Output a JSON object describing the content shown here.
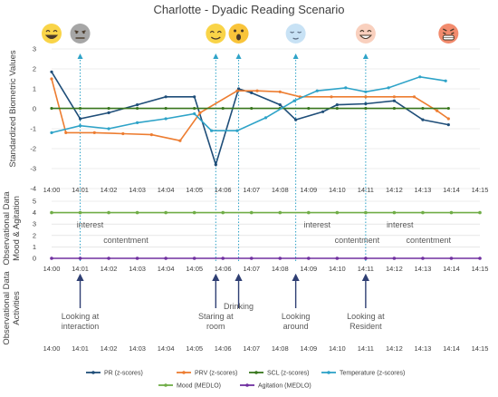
{
  "chart_data": {
    "type": "line",
    "title": "Charlotte - Dyadic Reading Scenario",
    "panel1_ylabel": "Standardized Biometric Values",
    "panel2_ylabel": "Observational Data Mood & Agitation",
    "panel3_ylabel": "Observational Data Activities",
    "x": [
      "14:00",
      "14:01",
      "14:02",
      "14:03",
      "14:04",
      "14:05",
      "14:06",
      "14:07",
      "14:08",
      "14:09",
      "14:10",
      "14:11",
      "14:12",
      "14:13",
      "14:14",
      "14:15"
    ],
    "panel1_ylim": [
      -4,
      3
    ],
    "panel1_yticks": [
      3,
      2,
      1,
      0,
      -1,
      -2,
      -3,
      -4
    ],
    "panel2_ylim": [
      0,
      5
    ],
    "panel2_yticks": [
      5,
      4,
      3,
      2,
      1,
      0
    ],
    "biometric_series": [
      {
        "name": "PR (z-scores)",
        "color": "#1f4e79",
        "points": [
          [
            0,
            1.85
          ],
          [
            1,
            -0.5
          ],
          [
            2,
            -0.2
          ],
          [
            3,
            0.2
          ],
          [
            4,
            0.6
          ],
          [
            5,
            0.6
          ],
          [
            5.75,
            -2.8
          ],
          [
            6.55,
            1.0
          ],
          [
            7,
            0.8
          ],
          [
            8,
            0.2
          ],
          [
            8.55,
            -0.55
          ],
          [
            9.5,
            -0.15
          ],
          [
            10,
            0.2
          ],
          [
            11,
            0.25
          ],
          [
            12,
            0.4
          ],
          [
            13,
            -0.55
          ],
          [
            13.9,
            -0.8
          ]
        ]
      },
      {
        "name": "PRV (z-scores)",
        "color": "#ed7d31",
        "points": [
          [
            0,
            1.5
          ],
          [
            0.5,
            -1.2
          ],
          [
            1.5,
            -1.2
          ],
          [
            2.5,
            -1.25
          ],
          [
            3.5,
            -1.3
          ],
          [
            4.5,
            -1.6
          ],
          [
            5.2,
            -0.2
          ],
          [
            6.5,
            0.9
          ],
          [
            7.2,
            0.9
          ],
          [
            8.0,
            0.85
          ],
          [
            8.7,
            0.6
          ],
          [
            9.8,
            0.6
          ],
          [
            11,
            0.6
          ],
          [
            12,
            0.6
          ],
          [
            12.7,
            0.6
          ],
          [
            13.5,
            -0.1
          ],
          [
            13.9,
            -0.5
          ]
        ]
      },
      {
        "name": "SCL (z-scores)",
        "color": "#38761d",
        "points": [
          [
            0,
            0.02
          ],
          [
            1,
            0.02
          ],
          [
            2,
            0.02
          ],
          [
            3,
            0.02
          ],
          [
            4,
            0.02
          ],
          [
            5,
            0.02
          ],
          [
            6,
            0.02
          ],
          [
            7,
            0.02
          ],
          [
            8,
            0.02
          ],
          [
            9,
            0.02
          ],
          [
            10,
            0.02
          ],
          [
            11,
            0.02
          ],
          [
            12,
            0.02
          ],
          [
            13,
            0.02
          ],
          [
            13.9,
            0.02
          ]
        ]
      },
      {
        "name": "Temperature (z-scores)",
        "color": "#2ea3c8",
        "points": [
          [
            0,
            -1.2
          ],
          [
            1,
            -0.85
          ],
          [
            2,
            -1.0
          ],
          [
            3,
            -0.7
          ],
          [
            4,
            -0.5
          ],
          [
            5,
            -0.25
          ],
          [
            5.6,
            -1.1
          ],
          [
            6.5,
            -1.1
          ],
          [
            7.5,
            -0.45
          ],
          [
            8.5,
            0.4
          ],
          [
            9.3,
            0.9
          ],
          [
            10.3,
            1.05
          ],
          [
            11.0,
            0.85
          ],
          [
            11.8,
            1.05
          ],
          [
            12.9,
            1.6
          ],
          [
            13.8,
            1.4
          ]
        ]
      }
    ],
    "observational_series": [
      {
        "name": "Mood (MEDLO)",
        "color": "#70ad47",
        "values": [
          4,
          4,
          4,
          4,
          4,
          4,
          4,
          4,
          4,
          4,
          4,
          4,
          4,
          4,
          4,
          4
        ]
      },
      {
        "name": "Agitation (MEDLO)",
        "color": "#7030a0",
        "values": [
          0,
          0,
          0,
          0,
          0,
          0,
          0,
          0,
          0,
          0,
          0,
          0,
          0,
          0,
          0,
          0
        ]
      }
    ],
    "mood_annotations": [
      {
        "text": "interest",
        "x": 1.35,
        "row": 1
      },
      {
        "text": "contentment",
        "x": 2.6,
        "row": 2
      },
      {
        "text": "interest",
        "x": 9.3,
        "row": 1
      },
      {
        "text": "contentment",
        "x": 10.7,
        "row": 2
      },
      {
        "text": "interest",
        "x": 12.2,
        "row": 1
      },
      {
        "text": "contentment",
        "x": 13.2,
        "row": 2
      }
    ],
    "activities": [
      {
        "lines": [
          "Looking at",
          "interaction"
        ],
        "x": 1.0
      },
      {
        "lines": [
          "Staring at",
          "room"
        ],
        "x": 5.75
      },
      {
        "lines": [
          "Drinking"
        ],
        "x": 6.55
      },
      {
        "lines": [
          "Looking",
          "around"
        ],
        "x": 8.55
      },
      {
        "lines": [
          "Looking at",
          "Resident"
        ],
        "x": 11.0
      }
    ],
    "emojis": [
      {
        "name": "smile-face-icon",
        "x": 0,
        "bg": "#f9d448",
        "type": "smile"
      },
      {
        "name": "neutral-face-icon",
        "x": 1.0,
        "bg": "#a6a6a6",
        "type": "neutral"
      },
      {
        "name": "content-face-icon",
        "x": 5.75,
        "bg": "#f9d448",
        "type": "content"
      },
      {
        "name": "surprised-face-icon",
        "x": 6.55,
        "bg": "#f9c43a",
        "type": "surprised"
      },
      {
        "name": "calm-face-icon",
        "x": 8.55,
        "bg": "#c8e2f5",
        "type": "calm"
      },
      {
        "name": "happy-face-icon",
        "x": 11.0,
        "bg": "#f9d0be",
        "type": "happy"
      },
      {
        "name": "grimace-face-icon",
        "x": 13.9,
        "bg": "#f28b6d",
        "type": "grimace"
      }
    ],
    "legend": [
      {
        "name": "PR (z-scores)",
        "color": "#1f4e79"
      },
      {
        "name": "PRV (z-scores)",
        "color": "#ed7d31"
      },
      {
        "name": "SCL (z-scores)",
        "color": "#38761d"
      },
      {
        "name": "Temperature (z-scores)",
        "color": "#2ea3c8"
      },
      {
        "name": "Mood (MEDLO)",
        "color": "#70ad47"
      },
      {
        "name": "Agitation (MEDLO)",
        "color": "#7030a0"
      }
    ],
    "grid": true,
    "legend_position": "bottom"
  }
}
